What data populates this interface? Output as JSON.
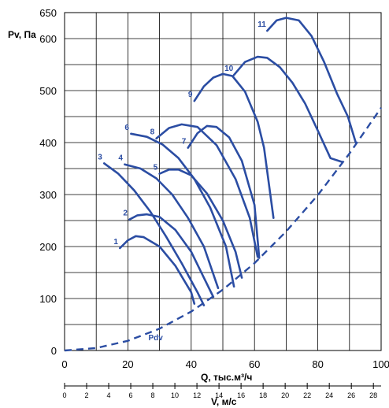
{
  "chart_data": {
    "type": "line",
    "ylabel": "Pv, Па",
    "xlabel": "Q, тыс.м³/ч",
    "x2label": "V, м/с",
    "xlim": [
      0,
      100
    ],
    "ylim": [
      0,
      650
    ],
    "x_ticks": [
      "0",
      "20",
      "40",
      "60",
      "80",
      "100"
    ],
    "y_ticks": [
      "0",
      "100",
      "200",
      "300",
      "400",
      "500",
      "600",
      "650"
    ],
    "x2_ticks": [
      "0",
      "2",
      "4",
      "6",
      "8",
      "10",
      "12",
      "14",
      "16",
      "18",
      "20",
      "22",
      "24",
      "26",
      "28"
    ],
    "grid": true,
    "series": [
      {
        "name": "1",
        "x": [
          17.5,
          20,
          22.5,
          25,
          30,
          35,
          40,
          41
        ],
        "y": [
          197,
          212,
          220,
          218,
          200,
          163,
          112,
          90
        ]
      },
      {
        "name": "2",
        "x": [
          20.5,
          23,
          26,
          30,
          35,
          40,
          44,
          47
        ],
        "y": [
          252,
          260,
          262,
          257,
          232,
          190,
          140,
          103
        ]
      },
      {
        "name": "3",
        "x": [
          12.5,
          17,
          22,
          27,
          32,
          37,
          42,
          44
        ],
        "y": [
          360,
          340,
          308,
          268,
          220,
          168,
          112,
          87
        ]
      },
      {
        "name": "4",
        "x": [
          19,
          24,
          29,
          34,
          39,
          44,
          48.5
        ],
        "y": [
          358,
          350,
          331,
          300,
          255,
          200,
          120
        ]
      },
      {
        "name": "5",
        "x": [
          30,
          33,
          36,
          40,
          45,
          50,
          54,
          56
        ],
        "y": [
          340,
          348,
          348,
          337,
          302,
          250,
          190,
          140
        ]
      },
      {
        "name": "6",
        "x": [
          21,
          26,
          31,
          36,
          41,
          46,
          51,
          53.5
        ],
        "y": [
          417,
          411,
          396,
          370,
          330,
          275,
          200,
          123
        ]
      },
      {
        "name": "7",
        "x": [
          39,
          42,
          45,
          48,
          52,
          56,
          60,
          61.5
        ],
        "y": [
          390,
          418,
          432,
          430,
          410,
          365,
          280,
          178
        ]
      },
      {
        "name": "8",
        "x": [
          29,
          33,
          37,
          42,
          48,
          54,
          58.5,
          61
        ],
        "y": [
          408,
          428,
          435,
          430,
          395,
          330,
          255,
          180
        ]
      },
      {
        "name": "9",
        "x": [
          41,
          44,
          47,
          50,
          53,
          57,
          61,
          63,
          66
        ],
        "y": [
          480,
          508,
          525,
          532,
          528,
          498,
          440,
          390,
          255
        ]
      },
      {
        "name": "10",
        "x": [
          53.5,
          57,
          61,
          64,
          68,
          72,
          76,
          80,
          84,
          87.5
        ],
        "y": [
          530,
          555,
          565,
          563,
          545,
          515,
          475,
          423,
          370,
          363
        ]
      },
      {
        "name": "11",
        "x": [
          64,
          67,
          70,
          74,
          78,
          82,
          86,
          89.5,
          92
        ],
        "y": [
          615,
          635,
          640,
          635,
          605,
          555,
          495,
          450,
          400
        ]
      }
    ],
    "pdv_curve": {
      "name": "Pdv",
      "x": [
        0,
        10,
        20,
        30,
        40,
        50,
        60,
        70,
        80,
        90,
        100
      ],
      "y": [
        0,
        4.7,
        18.7,
        42,
        74.8,
        117,
        168,
        229,
        299,
        379,
        467
      ]
    },
    "curve_labels": [
      "1",
      "2",
      "3",
      "4",
      "5",
      "6",
      "7",
      "8",
      "9",
      "10",
      "11"
    ],
    "pdv_label": "Pdv"
  }
}
